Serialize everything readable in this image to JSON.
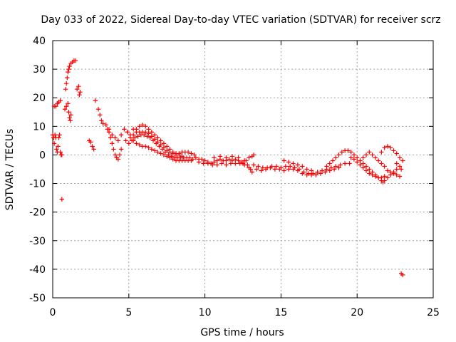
{
  "chart_data": {
    "type": "scatter",
    "title": "Day 033 of 2022, Sidereal Day-to-day VTEC variation (SDTVAR) for receiver scrz",
    "xlabel": "GPS time / hours",
    "ylabel": "SDTVAR / TECUs",
    "xlim": [
      0,
      25
    ],
    "ylim": [
      -50,
      40
    ],
    "xticks": [
      "0",
      "5",
      "10",
      "15",
      "20",
      "25"
    ],
    "yticks": [
      "40",
      "30",
      "20",
      "10",
      "0",
      "-10",
      "-20",
      "-30",
      "-40",
      "-50"
    ],
    "grid": true,
    "marker": "+",
    "color": "#ff0000",
    "series": [
      {
        "name": "SDTVAR",
        "points": [
          [
            0.0,
            7
          ],
          [
            0.05,
            6
          ],
          [
            0.1,
            4
          ],
          [
            0.15,
            7
          ],
          [
            0.2,
            6
          ],
          [
            0.25,
            2
          ],
          [
            0.3,
            1
          ],
          [
            0.35,
            3
          ],
          [
            0.4,
            6
          ],
          [
            0.45,
            7
          ],
          [
            0.5,
            1
          ],
          [
            0.55,
            0
          ],
          [
            0.6,
            0
          ],
          [
            0.1,
            17
          ],
          [
            0.2,
            17
          ],
          [
            0.3,
            18
          ],
          [
            0.4,
            18.5
          ],
          [
            0.5,
            19
          ],
          [
            0.6,
            -15.5
          ],
          [
            0.8,
            16
          ],
          [
            0.9,
            17
          ],
          [
            1.0,
            18
          ],
          [
            1.05,
            15
          ],
          [
            1.1,
            13
          ],
          [
            1.15,
            12
          ],
          [
            1.2,
            14
          ],
          [
            0.85,
            23
          ],
          [
            0.9,
            25
          ],
          [
            0.95,
            27
          ],
          [
            1.0,
            29
          ],
          [
            1.05,
            30
          ],
          [
            1.1,
            31
          ],
          [
            1.2,
            32
          ],
          [
            1.3,
            32.5
          ],
          [
            1.4,
            33
          ],
          [
            1.5,
            33
          ],
          [
            1.6,
            23
          ],
          [
            1.7,
            24
          ],
          [
            1.8,
            22
          ],
          [
            1.75,
            21
          ],
          [
            2.4,
            5
          ],
          [
            2.5,
            4.5
          ],
          [
            2.6,
            3
          ],
          [
            2.7,
            2
          ],
          [
            2.8,
            19
          ],
          [
            3.0,
            16
          ],
          [
            3.1,
            14
          ],
          [
            3.2,
            12
          ],
          [
            3.3,
            11
          ],
          [
            3.5,
            10.5
          ],
          [
            3.6,
            9
          ],
          [
            3.7,
            8
          ],
          [
            3.8,
            6
          ],
          [
            3.9,
            4
          ],
          [
            4.0,
            2
          ],
          [
            4.1,
            0
          ],
          [
            4.2,
            -1
          ],
          [
            4.3,
            -1.5
          ],
          [
            4.4,
            0
          ],
          [
            4.5,
            2
          ],
          [
            3.7,
            9
          ],
          [
            3.9,
            7
          ],
          [
            4.1,
            6
          ],
          [
            4.3,
            5
          ],
          [
            4.5,
            7
          ],
          [
            4.7,
            9
          ],
          [
            4.9,
            8
          ],
          [
            5.1,
            6
          ],
          [
            5.3,
            7
          ],
          [
            5.5,
            9
          ],
          [
            5.7,
            10
          ],
          [
            5.9,
            10.5
          ],
          [
            6.1,
            10
          ],
          [
            6.3,
            9
          ],
          [
            6.5,
            8
          ],
          [
            6.7,
            7
          ],
          [
            6.9,
            6
          ],
          [
            7.1,
            5
          ],
          [
            7.3,
            4
          ],
          [
            7.5,
            3
          ],
          [
            7.7,
            2
          ],
          [
            7.9,
            1
          ],
          [
            8.1,
            0.5
          ],
          [
            8.3,
            0.5
          ],
          [
            8.5,
            1
          ],
          [
            8.7,
            1
          ],
          [
            8.9,
            1
          ],
          [
            9.1,
            0.5
          ],
          [
            9.3,
            0
          ],
          [
            4.8,
            5
          ],
          [
            5.0,
            4
          ],
          [
            5.2,
            5
          ],
          [
            5.4,
            6
          ],
          [
            5.6,
            6.5
          ],
          [
            5.8,
            7
          ],
          [
            6.0,
            7
          ],
          [
            6.2,
            6.5
          ],
          [
            6.4,
            6
          ],
          [
            6.6,
            5
          ],
          [
            6.8,
            4
          ],
          [
            7.0,
            3
          ],
          [
            7.2,
            2
          ],
          [
            7.4,
            1
          ],
          [
            7.6,
            0
          ],
          [
            7.8,
            -0.5
          ],
          [
            8.0,
            -1
          ],
          [
            8.2,
            -1
          ],
          [
            8.4,
            -1
          ],
          [
            8.6,
            -1
          ],
          [
            8.8,
            -1
          ],
          [
            9.0,
            -1
          ],
          [
            9.2,
            -1.5
          ],
          [
            4.9,
            8
          ],
          [
            5.1,
            7
          ],
          [
            5.3,
            5
          ],
          [
            5.5,
            4
          ],
          [
            5.7,
            3.5
          ],
          [
            5.9,
            3
          ],
          [
            6.1,
            3
          ],
          [
            6.3,
            2.5
          ],
          [
            6.5,
            2
          ],
          [
            6.7,
            1.5
          ],
          [
            6.9,
            1
          ],
          [
            7.1,
            0.5
          ],
          [
            7.3,
            0
          ],
          [
            7.5,
            -0.5
          ],
          [
            7.7,
            -1
          ],
          [
            7.9,
            -1.5
          ],
          [
            8.1,
            -2
          ],
          [
            8.3,
            -2
          ],
          [
            8.5,
            -2
          ],
          [
            8.7,
            -2
          ],
          [
            8.9,
            -2
          ],
          [
            9.1,
            -2
          ],
          [
            5.3,
            9
          ],
          [
            5.5,
            8
          ],
          [
            5.7,
            8
          ],
          [
            5.9,
            8
          ],
          [
            6.1,
            8
          ],
          [
            6.3,
            7.5
          ],
          [
            6.5,
            6.5
          ],
          [
            6.7,
            5.5
          ],
          [
            6.9,
            4.5
          ],
          [
            7.1,
            3.5
          ],
          [
            7.3,
            2.5
          ],
          [
            7.5,
            1.5
          ],
          [
            7.7,
            1
          ],
          [
            7.9,
            0.5
          ],
          [
            8.1,
            0
          ],
          [
            8.3,
            0
          ],
          [
            8.5,
            -0.5
          ],
          [
            9.4,
            -1
          ],
          [
            9.6,
            -1.5
          ],
          [
            9.8,
            -1.5
          ],
          [
            10.0,
            -2
          ],
          [
            10.2,
            -2.5
          ],
          [
            10.4,
            -3
          ],
          [
            10.6,
            -2.5
          ],
          [
            10.8,
            -2
          ],
          [
            11.0,
            -1.5
          ],
          [
            11.2,
            -2
          ],
          [
            11.4,
            -2
          ],
          [
            11.6,
            -1.5
          ],
          [
            11.8,
            -2
          ],
          [
            12.0,
            -1.5
          ],
          [
            12.2,
            -2
          ],
          [
            12.4,
            -2.5
          ],
          [
            12.6,
            -2
          ],
          [
            9.6,
            -2.5
          ],
          [
            9.9,
            -3
          ],
          [
            10.2,
            -3
          ],
          [
            10.5,
            -3.5
          ],
          [
            10.8,
            -3.5
          ],
          [
            11.1,
            -3
          ],
          [
            11.4,
            -3.5
          ],
          [
            11.7,
            -3
          ],
          [
            12.0,
            -3
          ],
          [
            12.3,
            -3
          ],
          [
            12.6,
            -3.5
          ],
          [
            10.6,
            -1
          ],
          [
            11.0,
            -0.5
          ],
          [
            11.4,
            -1
          ],
          [
            11.8,
            -0.5
          ],
          [
            12.2,
            -1
          ],
          [
            12.5,
            -3
          ],
          [
            12.7,
            -2
          ],
          [
            12.9,
            -1
          ],
          [
            13.1,
            -0.5
          ],
          [
            13.2,
            0
          ],
          [
            12.8,
            -3.5
          ],
          [
            12.9,
            -4.5
          ],
          [
            13.0,
            -5
          ],
          [
            13.1,
            -6
          ],
          [
            13.2,
            -3.5
          ],
          [
            13.5,
            -4
          ],
          [
            13.8,
            -4.5
          ],
          [
            14.1,
            -4.5
          ],
          [
            14.4,
            -4
          ],
          [
            14.7,
            -4
          ],
          [
            15.0,
            -4.5
          ],
          [
            15.3,
            -4
          ],
          [
            15.6,
            -4
          ],
          [
            15.9,
            -4.5
          ],
          [
            16.2,
            -5
          ],
          [
            16.5,
            -6
          ],
          [
            16.8,
            -6.5
          ],
          [
            17.1,
            -6.5
          ],
          [
            17.4,
            -6
          ],
          [
            17.7,
            -5.5
          ],
          [
            18.0,
            -5
          ],
          [
            18.3,
            -4.5
          ],
          [
            18.6,
            -4
          ],
          [
            18.9,
            -3.5
          ],
          [
            19.2,
            -3
          ],
          [
            19.5,
            -3
          ],
          [
            13.4,
            -5
          ],
          [
            13.7,
            -5.5
          ],
          [
            14.0,
            -5
          ],
          [
            14.3,
            -4.5
          ],
          [
            14.6,
            -5
          ],
          [
            14.9,
            -5
          ],
          [
            15.2,
            -5.5
          ],
          [
            15.5,
            -5
          ],
          [
            15.8,
            -5
          ],
          [
            16.1,
            -5.5
          ],
          [
            16.4,
            -6.5
          ],
          [
            16.7,
            -7
          ],
          [
            17.0,
            -7
          ],
          [
            17.3,
            -7
          ],
          [
            17.6,
            -6.5
          ],
          [
            17.9,
            -6
          ],
          [
            18.2,
            -5.5
          ],
          [
            18.5,
            -5
          ],
          [
            18.8,
            -4.5
          ],
          [
            15.2,
            -2
          ],
          [
            15.5,
            -2.5
          ],
          [
            15.8,
            -3
          ],
          [
            16.1,
            -3.5
          ],
          [
            16.4,
            -4
          ],
          [
            16.7,
            -5
          ],
          [
            17.0,
            -5.5
          ],
          [
            18.0,
            -4
          ],
          [
            18.2,
            -3
          ],
          [
            18.4,
            -2
          ],
          [
            18.6,
            -1
          ],
          [
            18.8,
            0
          ],
          [
            19.0,
            1
          ],
          [
            19.2,
            1.5
          ],
          [
            19.4,
            1.5
          ],
          [
            19.6,
            1
          ],
          [
            19.8,
            0
          ],
          [
            20.0,
            -1
          ],
          [
            20.2,
            -2
          ],
          [
            20.4,
            -3
          ],
          [
            20.6,
            -4
          ],
          [
            20.8,
            -5
          ],
          [
            21.0,
            -6
          ],
          [
            21.2,
            -7
          ],
          [
            21.4,
            -8
          ],
          [
            21.6,
            -9
          ],
          [
            21.7,
            -9.5
          ],
          [
            21.8,
            -9
          ],
          [
            22.0,
            -8
          ],
          [
            22.2,
            -7
          ],
          [
            22.4,
            -6
          ],
          [
            22.6,
            -5
          ],
          [
            19.6,
            -1
          ],
          [
            19.8,
            -1.5
          ],
          [
            20.0,
            -2.5
          ],
          [
            20.2,
            -3.5
          ],
          [
            20.4,
            -4.5
          ],
          [
            20.6,
            -5.5
          ],
          [
            20.8,
            -6.5
          ],
          [
            21.0,
            -7
          ],
          [
            21.2,
            -7.5
          ],
          [
            21.4,
            -8
          ],
          [
            21.6,
            -8
          ],
          [
            21.8,
            -7.5
          ],
          [
            20.4,
            -1
          ],
          [
            20.6,
            0
          ],
          [
            20.8,
            1
          ],
          [
            21.0,
            0
          ],
          [
            21.2,
            -1
          ],
          [
            21.4,
            -2
          ],
          [
            21.6,
            -3
          ],
          [
            21.8,
            -4
          ],
          [
            22.0,
            -5.5
          ],
          [
            22.2,
            -6
          ],
          [
            22.4,
            -6.5
          ],
          [
            22.6,
            -7
          ],
          [
            22.8,
            -7.5
          ],
          [
            21.6,
            1
          ],
          [
            21.8,
            2.5
          ],
          [
            22.0,
            3
          ],
          [
            22.2,
            2.5
          ],
          [
            22.4,
            1.5
          ],
          [
            22.6,
            0.5
          ],
          [
            22.8,
            -1
          ],
          [
            23.0,
            -2
          ],
          [
            22.6,
            -3
          ],
          [
            22.8,
            -4
          ],
          [
            22.9,
            -5
          ],
          [
            22.9,
            -41.5
          ],
          [
            23.0,
            -42
          ]
        ]
      }
    ]
  }
}
